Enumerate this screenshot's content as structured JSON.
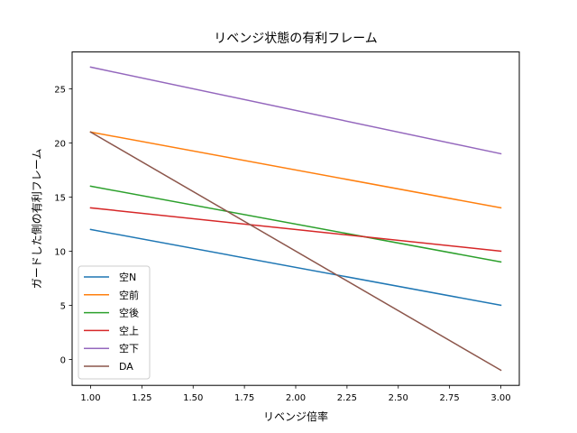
{
  "chart_data": {
    "type": "line",
    "title": "リベンジ状態の有利フレーム",
    "xlabel": "リベンジ倍率",
    "ylabel": "ガードした側の有利フレーム",
    "xlim": [
      0.91,
      3.09
    ],
    "ylim": [
      -2.4,
      28.4
    ],
    "xticks": [
      1.0,
      1.25,
      1.5,
      1.75,
      2.0,
      2.25,
      2.5,
      2.75,
      3.0
    ],
    "xtick_labels": [
      "1.00",
      "1.25",
      "1.50",
      "1.75",
      "2.00",
      "2.25",
      "2.50",
      "2.75",
      "3.00"
    ],
    "yticks": [
      0,
      5,
      10,
      15,
      20,
      25
    ],
    "ytick_labels": [
      "0",
      "5",
      "10",
      "15",
      "20",
      "25"
    ],
    "grid": false,
    "legend_position": "lower-left",
    "x": [
      1.0,
      3.0
    ],
    "series": [
      {
        "name": "空N",
        "color": "#1f77b4",
        "values": [
          12,
          5
        ]
      },
      {
        "name": "空前",
        "color": "#ff7f0e",
        "values": [
          21,
          14
        ]
      },
      {
        "name": "空後",
        "color": "#2ca02c",
        "values": [
          16,
          9
        ]
      },
      {
        "name": "空上",
        "color": "#d62728",
        "values": [
          14,
          10
        ]
      },
      {
        "name": "空下",
        "color": "#9467bd",
        "values": [
          27,
          19
        ]
      },
      {
        "name": "DA",
        "color": "#8c564b",
        "values": [
          21,
          -1
        ]
      }
    ]
  }
}
